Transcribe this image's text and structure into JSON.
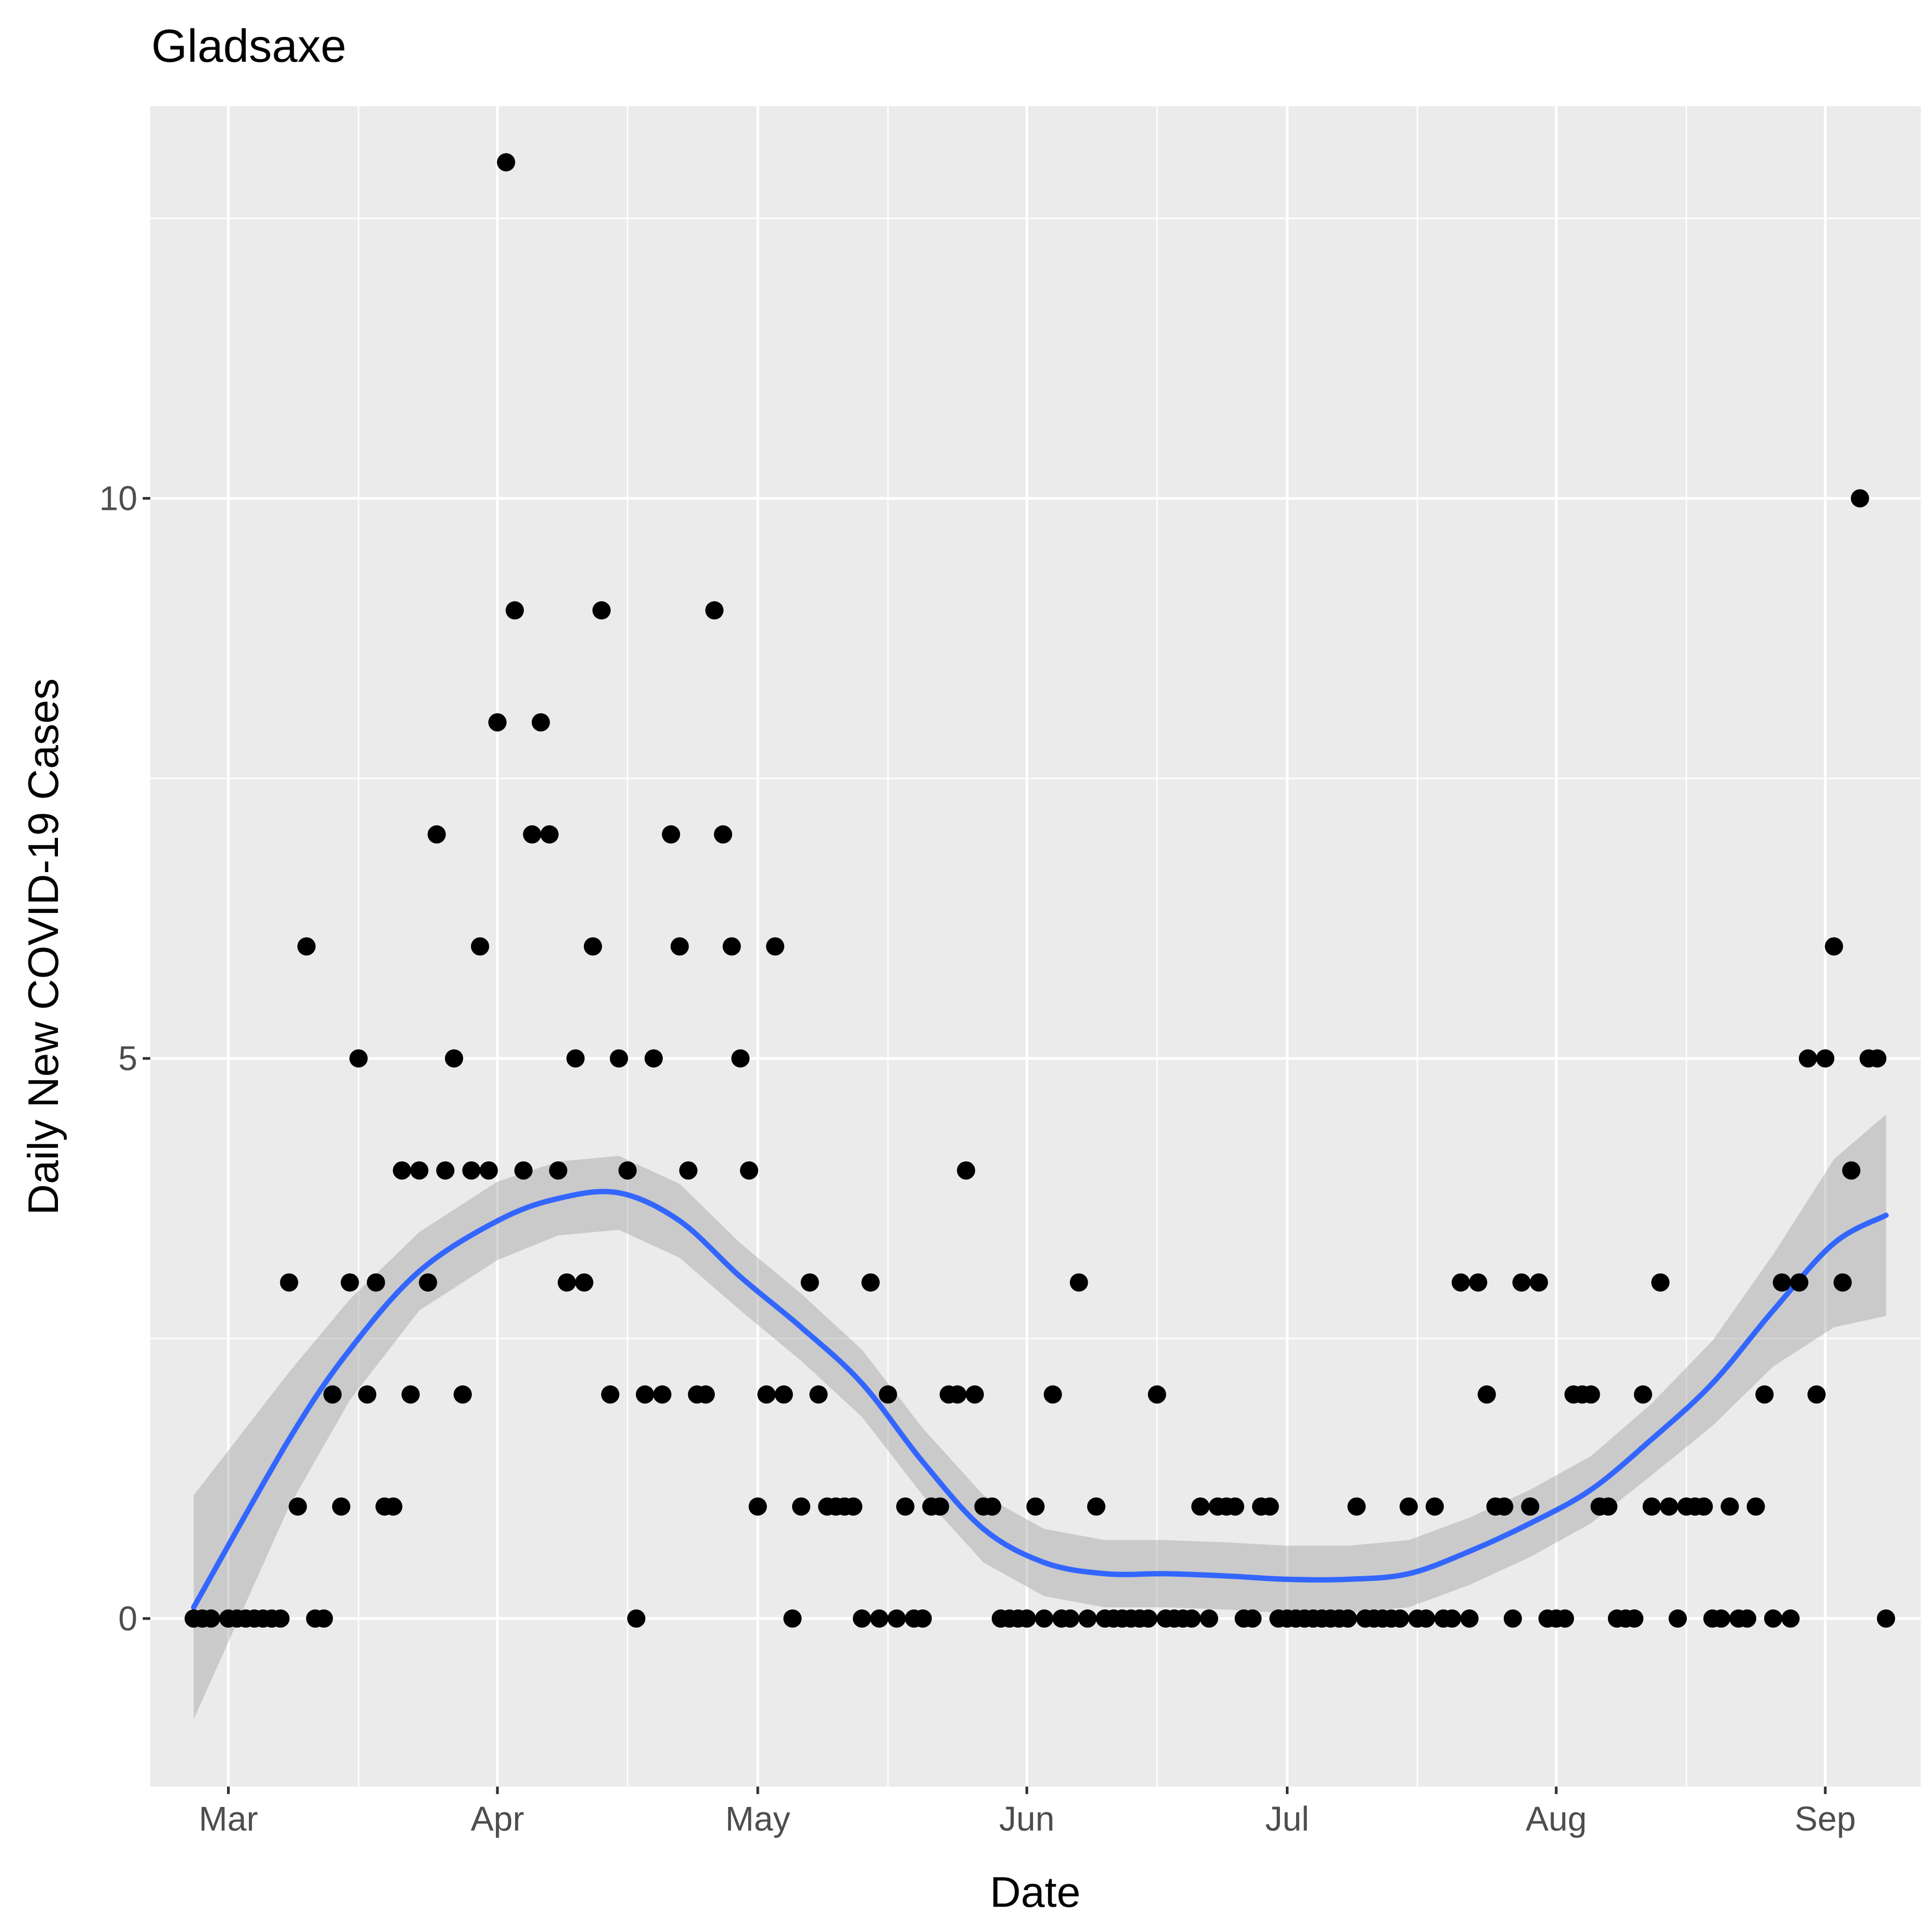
{
  "chart_data": {
    "type": "scatter",
    "title": "Gladsaxe",
    "xlabel": "Date",
    "ylabel": "Daily New COVID-19 Cases",
    "x_type": "date",
    "xlim": [
      "2020-02-21",
      "2020-09-12"
    ],
    "ylim": [
      -1.5,
      13.5
    ],
    "x_ticks": [
      {
        "value": "2020-03-01",
        "label": "Mar"
      },
      {
        "value": "2020-04-01",
        "label": "Apr"
      },
      {
        "value": "2020-05-01",
        "label": "May"
      },
      {
        "value": "2020-06-01",
        "label": "Jun"
      },
      {
        "value": "2020-07-01",
        "label": "Jul"
      },
      {
        "value": "2020-08-01",
        "label": "Aug"
      },
      {
        "value": "2020-09-01",
        "label": "Sep"
      }
    ],
    "x_minor_ticks": [
      "2020-02-15",
      "2020-03-16",
      "2020-04-16",
      "2020-05-16",
      "2020-06-16",
      "2020-07-16",
      "2020-08-16",
      "2020-09-16"
    ],
    "y_ticks": [
      {
        "value": 0,
        "label": "0"
      },
      {
        "value": 5,
        "label": "5"
      },
      {
        "value": 10,
        "label": "10"
      }
    ],
    "y_minor_ticks": [
      -2.5,
      2.5,
      7.5,
      12.5
    ],
    "grid": true,
    "colors": {
      "panel": "#ebebeb",
      "grid": "#ffffff",
      "points": "#000000",
      "smooth": "#3366ff",
      "ribbon": "#999999"
    },
    "series": [
      {
        "type": "scatter",
        "points": [
          [
            "2020-02-26",
            0
          ],
          [
            "2020-02-27",
            0
          ],
          [
            "2020-02-28",
            0
          ],
          [
            "2020-03-01",
            0
          ],
          [
            "2020-03-02",
            0
          ],
          [
            "2020-03-03",
            0
          ],
          [
            "2020-03-04",
            0
          ],
          [
            "2020-03-05",
            0
          ],
          [
            "2020-03-06",
            0
          ],
          [
            "2020-03-07",
            0
          ],
          [
            "2020-03-08",
            3
          ],
          [
            "2020-03-09",
            1
          ],
          [
            "2020-03-10",
            6
          ],
          [
            "2020-03-11",
            0
          ],
          [
            "2020-03-12",
            0
          ],
          [
            "2020-03-13",
            2
          ],
          [
            "2020-03-14",
            1
          ],
          [
            "2020-03-15",
            3
          ],
          [
            "2020-03-16",
            5
          ],
          [
            "2020-03-17",
            2
          ],
          [
            "2020-03-18",
            3
          ],
          [
            "2020-03-19",
            1
          ],
          [
            "2020-03-20",
            1
          ],
          [
            "2020-03-21",
            4
          ],
          [
            "2020-03-22",
            2
          ],
          [
            "2020-03-23",
            4
          ],
          [
            "2020-03-24",
            3
          ],
          [
            "2020-03-25",
            7
          ],
          [
            "2020-03-26",
            4
          ],
          [
            "2020-03-27",
            5
          ],
          [
            "2020-03-28",
            2
          ],
          [
            "2020-03-29",
            4
          ],
          [
            "2020-03-30",
            6
          ],
          [
            "2020-03-31",
            4
          ],
          [
            "2020-04-01",
            8
          ],
          [
            "2020-04-02",
            13
          ],
          [
            "2020-04-03",
            9
          ],
          [
            "2020-04-04",
            4
          ],
          [
            "2020-04-05",
            7
          ],
          [
            "2020-04-06",
            8
          ],
          [
            "2020-04-07",
            7
          ],
          [
            "2020-04-08",
            4
          ],
          [
            "2020-04-09",
            3
          ],
          [
            "2020-04-10",
            5
          ],
          [
            "2020-04-11",
            3
          ],
          [
            "2020-04-12",
            6
          ],
          [
            "2020-04-13",
            9
          ],
          [
            "2020-04-14",
            2
          ],
          [
            "2020-04-15",
            5
          ],
          [
            "2020-04-16",
            4
          ],
          [
            "2020-04-17",
            0
          ],
          [
            "2020-04-18",
            2
          ],
          [
            "2020-04-19",
            5
          ],
          [
            "2020-04-20",
            2
          ],
          [
            "2020-04-21",
            7
          ],
          [
            "2020-04-22",
            6
          ],
          [
            "2020-04-23",
            4
          ],
          [
            "2020-04-24",
            2
          ],
          [
            "2020-04-25",
            2
          ],
          [
            "2020-04-26",
            9
          ],
          [
            "2020-04-27",
            7
          ],
          [
            "2020-04-28",
            6
          ],
          [
            "2020-04-29",
            5
          ],
          [
            "2020-04-30",
            4
          ],
          [
            "2020-05-01",
            1
          ],
          [
            "2020-05-02",
            2
          ],
          [
            "2020-05-03",
            6
          ],
          [
            "2020-05-04",
            2
          ],
          [
            "2020-05-05",
            0
          ],
          [
            "2020-05-06",
            1
          ],
          [
            "2020-05-07",
            3
          ],
          [
            "2020-05-08",
            2
          ],
          [
            "2020-05-09",
            1
          ],
          [
            "2020-05-10",
            1
          ],
          [
            "2020-05-11",
            1
          ],
          [
            "2020-05-12",
            1
          ],
          [
            "2020-05-13",
            0
          ],
          [
            "2020-05-14",
            3
          ],
          [
            "2020-05-15",
            0
          ],
          [
            "2020-05-16",
            2
          ],
          [
            "2020-05-17",
            0
          ],
          [
            "2020-05-18",
            1
          ],
          [
            "2020-05-19",
            0
          ],
          [
            "2020-05-20",
            0
          ],
          [
            "2020-05-21",
            1
          ],
          [
            "2020-05-22",
            1
          ],
          [
            "2020-05-23",
            2
          ],
          [
            "2020-05-24",
            2
          ],
          [
            "2020-05-25",
            4
          ],
          [
            "2020-05-26",
            2
          ],
          [
            "2020-05-27",
            1
          ],
          [
            "2020-05-28",
            1
          ],
          [
            "2020-05-29",
            0
          ],
          [
            "2020-05-30",
            0
          ],
          [
            "2020-05-31",
            0
          ],
          [
            "2020-06-01",
            0
          ],
          [
            "2020-06-02",
            1
          ],
          [
            "2020-06-03",
            0
          ],
          [
            "2020-06-04",
            2
          ],
          [
            "2020-06-05",
            0
          ],
          [
            "2020-06-06",
            0
          ],
          [
            "2020-06-07",
            3
          ],
          [
            "2020-06-08",
            0
          ],
          [
            "2020-06-09",
            1
          ],
          [
            "2020-06-10",
            0
          ],
          [
            "2020-06-11",
            0
          ],
          [
            "2020-06-12",
            0
          ],
          [
            "2020-06-13",
            0
          ],
          [
            "2020-06-14",
            0
          ],
          [
            "2020-06-15",
            0
          ],
          [
            "2020-06-16",
            2
          ],
          [
            "2020-06-17",
            0
          ],
          [
            "2020-06-18",
            0
          ],
          [
            "2020-06-19",
            0
          ],
          [
            "2020-06-20",
            0
          ],
          [
            "2020-06-21",
            1
          ],
          [
            "2020-06-22",
            0
          ],
          [
            "2020-06-23",
            1
          ],
          [
            "2020-06-24",
            1
          ],
          [
            "2020-06-25",
            1
          ],
          [
            "2020-06-26",
            0
          ],
          [
            "2020-06-27",
            0
          ],
          [
            "2020-06-28",
            1
          ],
          [
            "2020-06-29",
            1
          ],
          [
            "2020-06-30",
            0
          ],
          [
            "2020-07-01",
            0
          ],
          [
            "2020-07-02",
            0
          ],
          [
            "2020-07-03",
            0
          ],
          [
            "2020-07-04",
            0
          ],
          [
            "2020-07-05",
            0
          ],
          [
            "2020-07-06",
            0
          ],
          [
            "2020-07-07",
            0
          ],
          [
            "2020-07-08",
            0
          ],
          [
            "2020-07-09",
            1
          ],
          [
            "2020-07-10",
            0
          ],
          [
            "2020-07-11",
            0
          ],
          [
            "2020-07-12",
            0
          ],
          [
            "2020-07-13",
            0
          ],
          [
            "2020-07-14",
            0
          ],
          [
            "2020-07-15",
            1
          ],
          [
            "2020-07-16",
            0
          ],
          [
            "2020-07-17",
            0
          ],
          [
            "2020-07-18",
            1
          ],
          [
            "2020-07-19",
            0
          ],
          [
            "2020-07-20",
            0
          ],
          [
            "2020-07-21",
            3
          ],
          [
            "2020-07-22",
            0
          ],
          [
            "2020-07-23",
            3
          ],
          [
            "2020-07-24",
            2
          ],
          [
            "2020-07-25",
            1
          ],
          [
            "2020-07-26",
            1
          ],
          [
            "2020-07-27",
            0
          ],
          [
            "2020-07-28",
            3
          ],
          [
            "2020-07-29",
            1
          ],
          [
            "2020-07-30",
            3
          ],
          [
            "2020-07-31",
            0
          ],
          [
            "2020-08-01",
            0
          ],
          [
            "2020-08-02",
            0
          ],
          [
            "2020-08-03",
            2
          ],
          [
            "2020-08-04",
            2
          ],
          [
            "2020-08-05",
            2
          ],
          [
            "2020-08-06",
            1
          ],
          [
            "2020-08-07",
            1
          ],
          [
            "2020-08-08",
            0
          ],
          [
            "2020-08-09",
            0
          ],
          [
            "2020-08-10",
            0
          ],
          [
            "2020-08-11",
            2
          ],
          [
            "2020-08-12",
            1
          ],
          [
            "2020-08-13",
            3
          ],
          [
            "2020-08-14",
            1
          ],
          [
            "2020-08-15",
            0
          ],
          [
            "2020-08-16",
            1
          ],
          [
            "2020-08-17",
            1
          ],
          [
            "2020-08-18",
            1
          ],
          [
            "2020-08-19",
            0
          ],
          [
            "2020-08-20",
            0
          ],
          [
            "2020-08-21",
            1
          ],
          [
            "2020-08-22",
            0
          ],
          [
            "2020-08-23",
            0
          ],
          [
            "2020-08-24",
            1
          ],
          [
            "2020-08-25",
            2
          ],
          [
            "2020-08-26",
            0
          ],
          [
            "2020-08-27",
            3
          ],
          [
            "2020-08-28",
            0
          ],
          [
            "2020-08-29",
            3
          ],
          [
            "2020-08-30",
            5
          ],
          [
            "2020-08-31",
            2
          ],
          [
            "2020-09-01",
            5
          ],
          [
            "2020-09-02",
            6
          ],
          [
            "2020-09-03",
            3
          ],
          [
            "2020-09-04",
            4
          ],
          [
            "2020-09-05",
            10
          ],
          [
            "2020-09-06",
            5
          ],
          [
            "2020-09-07",
            5
          ],
          [
            "2020-09-08",
            0
          ]
        ]
      },
      {
        "type": "smooth",
        "points": [
          [
            "2020-02-26",
            0.1,
            -0.9,
            1.1
          ],
          [
            "2020-03-08",
            1.6,
            1.0,
            2.2
          ],
          [
            "2020-03-15",
            2.4,
            1.95,
            2.85
          ],
          [
            "2020-03-23",
            3.1,
            2.75,
            3.45
          ],
          [
            "2020-04-01",
            3.55,
            3.2,
            3.9
          ],
          [
            "2020-04-08",
            3.75,
            3.42,
            4.08
          ],
          [
            "2020-04-15",
            3.8,
            3.47,
            4.13
          ],
          [
            "2020-04-22",
            3.55,
            3.22,
            3.88
          ],
          [
            "2020-04-29",
            3.05,
            2.75,
            3.35
          ],
          [
            "2020-05-06",
            2.6,
            2.3,
            2.9
          ],
          [
            "2020-05-13",
            2.1,
            1.8,
            2.4
          ],
          [
            "2020-05-20",
            1.4,
            1.1,
            1.7
          ],
          [
            "2020-05-27",
            0.8,
            0.5,
            1.1
          ],
          [
            "2020-06-03",
            0.5,
            0.2,
            0.8
          ],
          [
            "2020-06-10",
            0.4,
            0.1,
            0.7
          ],
          [
            "2020-06-17",
            0.4,
            0.1,
            0.7
          ],
          [
            "2020-06-24",
            0.38,
            0.08,
            0.68
          ],
          [
            "2020-07-01",
            0.35,
            0.05,
            0.65
          ],
          [
            "2020-07-08",
            0.35,
            0.05,
            0.65
          ],
          [
            "2020-07-15",
            0.4,
            0.1,
            0.7
          ],
          [
            "2020-07-22",
            0.6,
            0.3,
            0.9
          ],
          [
            "2020-07-29",
            0.85,
            0.55,
            1.15
          ],
          [
            "2020-08-05",
            1.15,
            0.85,
            1.45
          ],
          [
            "2020-08-12",
            1.6,
            1.28,
            1.92
          ],
          [
            "2020-08-19",
            2.1,
            1.72,
            2.48
          ],
          [
            "2020-08-26",
            2.75,
            2.25,
            3.25
          ],
          [
            "2020-09-02",
            3.35,
            2.6,
            4.1
          ],
          [
            "2020-09-08",
            3.6,
            2.7,
            4.5
          ]
        ]
      }
    ]
  }
}
